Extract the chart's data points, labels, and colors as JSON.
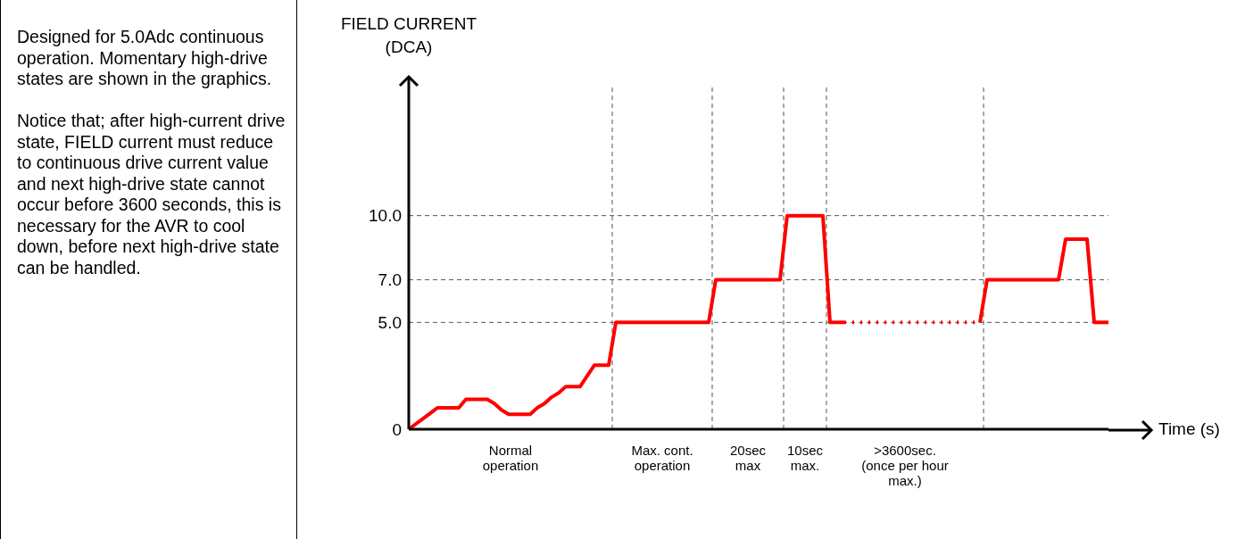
{
  "chart_data": {
    "type": "line",
    "ylabel": "FIELD CURRENT\n(DCA)",
    "xlabel": "Time (s)",
    "categories": [
      null,
      null,
      null,
      null,
      null,
      null,
      null,
      null,
      null,
      null,
      null,
      null,
      null,
      null,
      null,
      null,
      null,
      null,
      null,
      null,
      null,
      null,
      null,
      null,
      null,
      null,
      null,
      null,
      null,
      null,
      null,
      null,
      null,
      null,
      null,
      null,
      null,
      null,
      null,
      null,
      null,
      null,
      null,
      null,
      null,
      null,
      null,
      null,
      null,
      null,
      null,
      null,
      null,
      null,
      null,
      null,
      null,
      null,
      null,
      null,
      null,
      null,
      null,
      null,
      null,
      null,
      null,
      null,
      null,
      null,
      null,
      null,
      null,
      null,
      null,
      null,
      null,
      null,
      null,
      null,
      null,
      null,
      null,
      null,
      null,
      null,
      null,
      null,
      null,
      null,
      null,
      null,
      null,
      null,
      null,
      null,
      null,
      null,
      null
    ],
    "ylim": [
      0,
      16
    ],
    "yticks": [
      {
        "value": 0,
        "label": "0"
      },
      {
        "value": 5,
        "label": "5.0"
      },
      {
        "value": 7,
        "label": "7.0"
      },
      {
        "value": 10,
        "label": "10.0"
      }
    ],
    "tick_labels": "y",
    "series": [
      {
        "color": "#ff0000",
        "line_style": "solid",
        "values": [
          0,
          0.25,
          0.5,
          0.75,
          1.0,
          1.0,
          1.0,
          1.0,
          1.4,
          1.4,
          1.4,
          1.4,
          1.2,
          0.9,
          0.7,
          0.7,
          0.7,
          0.7,
          1.0,
          1.2,
          1.5,
          1.7,
          2.0,
          2.0,
          2.0,
          2.5,
          3.0,
          3.0,
          3.0,
          5,
          5,
          5,
          5,
          5,
          5,
          5,
          5,
          5,
          5,
          5,
          5,
          5,
          5,
          7,
          7,
          7,
          7,
          7,
          7,
          7,
          7,
          7,
          7,
          10,
          10,
          10,
          10,
          10,
          10,
          5,
          5,
          5,
          null,
          null,
          null,
          null,
          null,
          null,
          null,
          null,
          null,
          null,
          null,
          null,
          null,
          null,
          null,
          null,
          null,
          null,
          null,
          null,
          null,
          null,
          null,
          null,
          null,
          null,
          null,
          null,
          null,
          null,
          null,
          null,
          null,
          null,
          null,
          null,
          null
        ]
      },
      {
        "color": "#ff0000",
        "line_style": "dotted",
        "values": [
          null,
          null,
          null,
          null,
          null,
          null,
          null,
          null,
          null,
          null,
          null,
          null,
          null,
          null,
          null,
          null,
          null,
          null,
          null,
          null,
          null,
          null,
          null,
          null,
          null,
          null,
          null,
          null,
          null,
          null,
          null,
          null,
          null,
          null,
          null,
          null,
          null,
          null,
          null,
          null,
          null,
          null,
          null,
          null,
          null,
          null,
          null,
          null,
          null,
          null,
          null,
          null,
          null,
          null,
          null,
          null,
          null,
          null,
          null,
          null,
          null,
          5,
          5,
          5,
          5,
          5,
          5,
          5,
          5,
          5,
          5,
          5,
          5,
          5,
          5,
          5,
          5,
          5,
          5,
          5,
          5,
          null,
          null,
          null,
          null,
          null,
          null,
          null,
          null,
          null,
          null,
          null,
          null,
          null,
          null,
          null,
          null,
          null,
          null
        ]
      },
      {
        "color": "#ff0000",
        "line_style": "solid",
        "values": [
          null,
          null,
          null,
          null,
          null,
          null,
          null,
          null,
          null,
          null,
          null,
          null,
          null,
          null,
          null,
          null,
          null,
          null,
          null,
          null,
          null,
          null,
          null,
          null,
          null,
          null,
          null,
          null,
          null,
          null,
          null,
          null,
          null,
          null,
          null,
          null,
          null,
          null,
          null,
          null,
          null,
          null,
          null,
          null,
          null,
          null,
          null,
          null,
          null,
          null,
          null,
          null,
          null,
          null,
          null,
          null,
          null,
          null,
          null,
          null,
          null,
          null,
          null,
          null,
          null,
          null,
          null,
          null,
          null,
          null,
          null,
          null,
          null,
          null,
          null,
          null,
          null,
          null,
          null,
          null,
          5,
          7,
          7,
          7,
          7,
          7,
          7,
          7,
          7,
          7,
          7,
          7,
          8.9,
          8.9,
          8.9,
          8.9,
          5,
          5,
          5
        ]
      }
    ],
    "ref_lines": [
      {
        "axis": "y",
        "value": 5,
        "color": "#555555",
        "line_style": "dashed"
      },
      {
        "axis": "y",
        "value": 7,
        "color": "#555555",
        "line_style": "dashed"
      },
      {
        "axis": "y",
        "value": 10,
        "color": "#555555",
        "line_style": "dashed"
      }
    ],
    "annotations": [
      "Normal\noperation",
      "Max. cont.\noperation",
      "20sec\nmax",
      "10sec\nmax.",
      ">3600sec.\n(once per hour\nmax.)",
      "Designed for 5.0Adc continuous operation. Momentary high-drive states are shown in the graphics.\n\nNotice that; after high-current drive state, FIELD current must reduce to continuous drive current value and next high-drive state cannot occur before 3600 seconds, this is necessary for the AVR to cool down, before next high-drive state can be handled."
    ]
  }
}
